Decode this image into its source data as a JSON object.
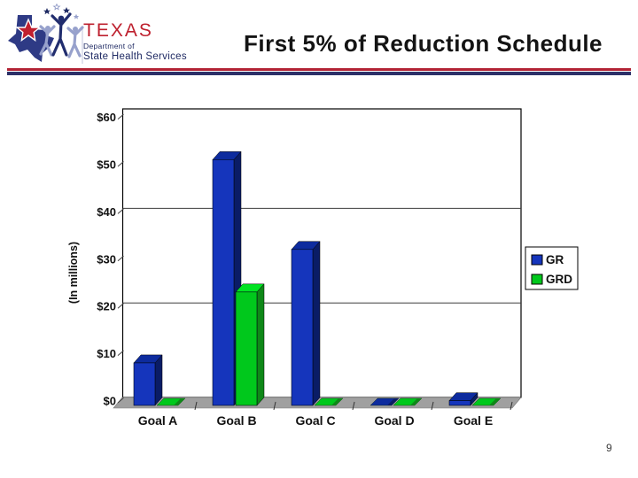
{
  "header": {
    "logo": {
      "brand": "TEXAS",
      "dept_line": "Department of",
      "agency_line": "State Health Services"
    },
    "title": "First 5% of Reduction Schedule"
  },
  "footer": {
    "page_number": "9"
  },
  "chart_data": {
    "type": "bar",
    "style": "3d",
    "title": "",
    "categories": [
      "Goal A",
      "Goal B",
      "Goal C",
      "Goal D",
      "Goal E"
    ],
    "series": [
      {
        "name": "GR",
        "values": [
          9,
          52,
          33,
          0,
          1
        ]
      },
      {
        "name": "GRD",
        "values": [
          0,
          24,
          0,
          0,
          0
        ]
      }
    ],
    "xlabel": "",
    "ylabel": "(In millions)",
    "ytick_labels": [
      "$0",
      "$10",
      "$20",
      "$30",
      "$40",
      "$50",
      "$60"
    ],
    "ytick_values": [
      0,
      10,
      20,
      30,
      40,
      50,
      60
    ],
    "ylim": [
      0,
      61
    ],
    "gridline_values": [
      20,
      40
    ],
    "grid": true,
    "legend": {
      "position": "right",
      "entries": [
        "GR",
        "GRD"
      ]
    },
    "colors": {
      "GR": {
        "front": "#1535BC",
        "top": "#0D2B9E",
        "side": "#0A1C66"
      },
      "GRD": {
        "front": "#00C81C",
        "top": "#00E322",
        "side": "#0F8818"
      },
      "floor": "#A0A0A0",
      "wall": "#FFFFFF",
      "border": "#000000"
    }
  },
  "colors": {
    "rule_red": "#B22234",
    "rule_navy": "#2C3068",
    "logo_red": "#BE202E",
    "logo_navy": "#1F2A63",
    "logo_periwinkle": "#97A1CC",
    "logo_state_blue": "#2E3A85"
  }
}
